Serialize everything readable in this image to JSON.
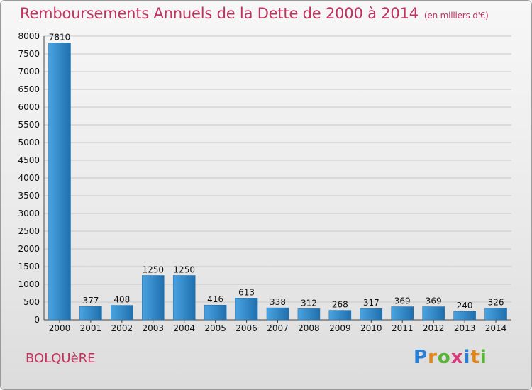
{
  "chart_data": {
    "type": "bar",
    "title": "Remboursements Annuels de la Dette de 2000 à 2014",
    "subtitle": "(en milliers d'€)",
    "categories": [
      "2000",
      "2001",
      "2002",
      "2003",
      "2004",
      "2005",
      "2006",
      "2007",
      "2008",
      "2009",
      "2010",
      "2011",
      "2012",
      "2013",
      "2014"
    ],
    "values": [
      7810,
      377,
      408,
      1250,
      1250,
      416,
      613,
      338,
      312,
      268,
      317,
      369,
      369,
      240,
      326
    ],
    "ylim": [
      0,
      8000
    ],
    "yticks": [
      0,
      500,
      1000,
      1500,
      2000,
      2500,
      3000,
      3500,
      4000,
      4500,
      5000,
      5500,
      6000,
      6500,
      7000,
      7500,
      8000
    ],
    "grid": true,
    "bar_color": "#2e86c8"
  },
  "place_name": "BOLQUèRE",
  "logo_text": "Proxiti"
}
